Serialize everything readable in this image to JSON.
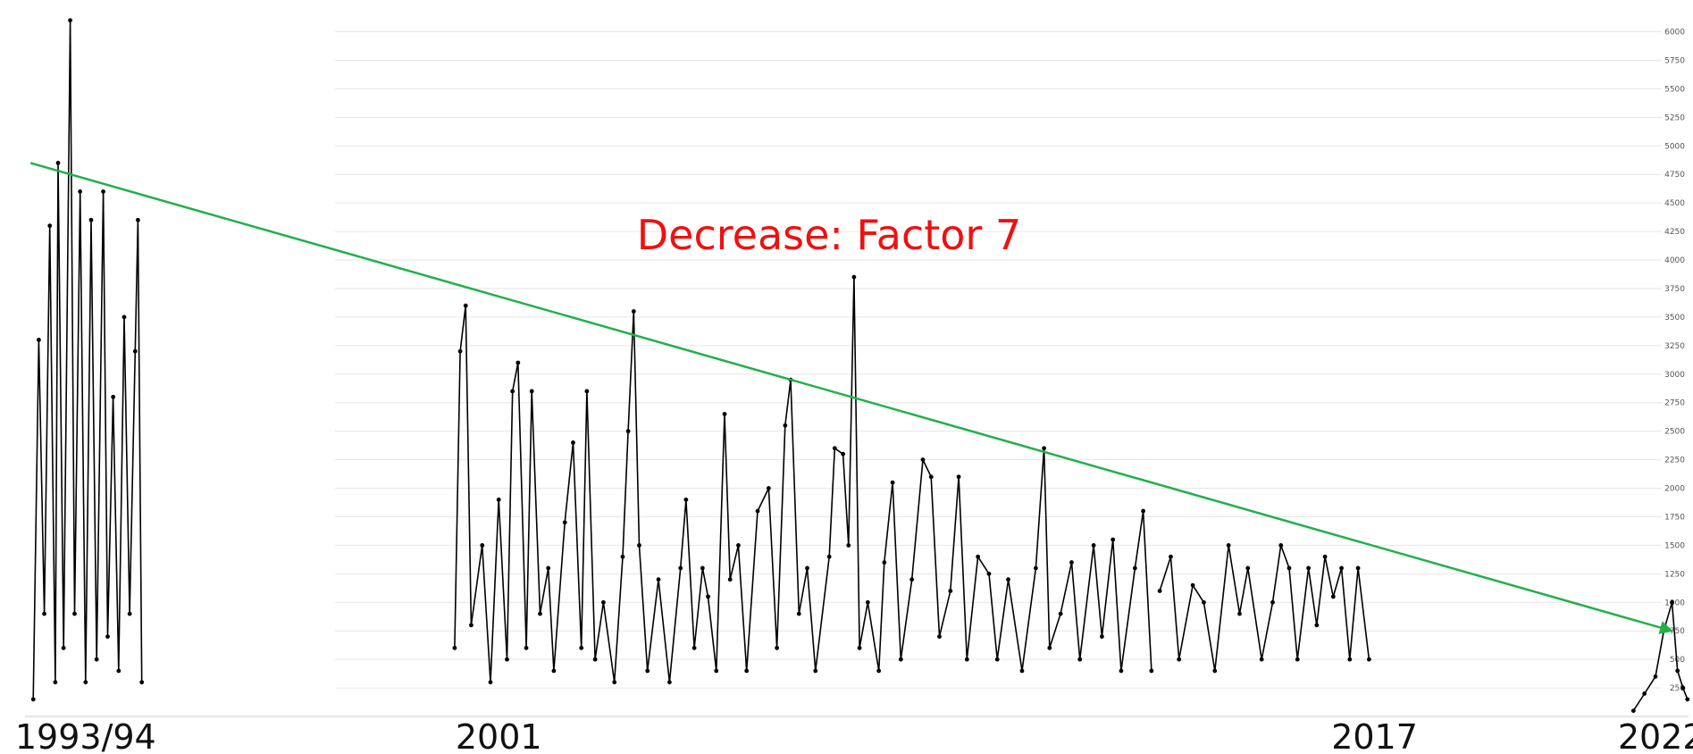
{
  "chart_data": {
    "type": "line",
    "title": "",
    "xlabel": "",
    "ylabel": "",
    "ylim": [
      0,
      6200
    ],
    "xlim": [
      1993.0,
      2023.2
    ],
    "y_ticks": [
      250,
      500,
      750,
      1000,
      1250,
      1500,
      1750,
      2000,
      2250,
      2500,
      2750,
      3000,
      3250,
      3500,
      3750,
      4000,
      4250,
      4500,
      4750,
      5000,
      5250,
      5500,
      5750,
      6000
    ],
    "grid": true,
    "legend": "none",
    "x_tick_labels": [
      {
        "label": "1993/94",
        "x": 1994.1
      },
      {
        "label": "2001",
        "x": 2001.6
      },
      {
        "label": "2017",
        "x": 2017.5
      },
      {
        "label": "2022",
        "x": 2022.7
      }
    ],
    "series": [
      {
        "segments": [
          [
            1993.15,
            150
          ],
          [
            1993.25,
            3300
          ],
          [
            1993.35,
            900
          ],
          [
            1993.45,
            4300
          ],
          [
            1993.55,
            300
          ],
          [
            1993.6,
            4850
          ],
          [
            1993.7,
            600
          ],
          [
            1993.82,
            6100
          ],
          [
            1993.9,
            900
          ],
          [
            1994.0,
            4600
          ],
          [
            1994.1,
            300
          ],
          [
            1994.2,
            4350
          ],
          [
            1994.3,
            500
          ],
          [
            1994.42,
            4600
          ],
          [
            1994.5,
            700
          ],
          [
            1994.6,
            2800
          ],
          [
            1994.7,
            400
          ],
          [
            1994.8,
            3500
          ],
          [
            1994.9,
            900
          ],
          [
            1995.0,
            3200
          ],
          [
            1995.05,
            4350
          ],
          [
            1995.12,
            300
          ],
          null,
          [
            2000.8,
            600
          ],
          [
            2000.9,
            3200
          ],
          [
            2001.0,
            3600
          ],
          [
            2001.1,
            800
          ],
          [
            2001.3,
            1500
          ],
          [
            2001.45,
            300
          ],
          [
            2001.6,
            1900
          ],
          [
            2001.75,
            500
          ],
          [
            2001.85,
            2850
          ],
          [
            2001.95,
            3100
          ],
          [
            2002.1,
            600
          ],
          [
            2002.2,
            2850
          ],
          [
            2002.35,
            900
          ],
          [
            2002.5,
            1300
          ],
          [
            2002.6,
            400
          ],
          [
            2002.8,
            1700
          ],
          [
            2002.95,
            2400
          ],
          [
            2003.1,
            600
          ],
          [
            2003.2,
            2850
          ],
          [
            2003.35,
            500
          ],
          [
            2003.5,
            1000
          ],
          [
            2003.7,
            300
          ],
          [
            2003.85,
            1400
          ],
          [
            2003.95,
            2500
          ],
          [
            2004.05,
            3550
          ],
          [
            2004.15,
            1500
          ],
          [
            2004.3,
            400
          ],
          [
            2004.5,
            1200
          ],
          [
            2004.7,
            300
          ],
          [
            2004.9,
            1300
          ],
          [
            2005.0,
            1900
          ],
          [
            2005.15,
            600
          ],
          [
            2005.3,
            1300
          ],
          [
            2005.4,
            1050
          ],
          [
            2005.55,
            400
          ],
          [
            2005.7,
            2650
          ],
          [
            2005.8,
            1200
          ],
          [
            2005.95,
            1500
          ],
          [
            2006.1,
            400
          ],
          [
            2006.3,
            1800
          ],
          [
            2006.5,
            2000
          ],
          [
            2006.65,
            600
          ],
          [
            2006.8,
            2550
          ],
          [
            2006.9,
            2950
          ],
          [
            2007.05,
            900
          ],
          [
            2007.2,
            1300
          ],
          [
            2007.35,
            400
          ],
          [
            2007.6,
            1400
          ],
          [
            2007.7,
            2350
          ],
          [
            2007.85,
            2300
          ],
          [
            2007.95,
            1500
          ],
          [
            2008.05,
            3850
          ],
          [
            2008.15,
            600
          ],
          [
            2008.3,
            1000
          ],
          [
            2008.5,
            400
          ],
          [
            2008.6,
            1350
          ],
          [
            2008.75,
            2050
          ],
          [
            2008.9,
            500
          ],
          [
            2009.1,
            1200
          ],
          [
            2009.3,
            2250
          ],
          [
            2009.45,
            2100
          ],
          [
            2009.6,
            700
          ],
          [
            2009.8,
            1100
          ],
          [
            2009.95,
            2100
          ],
          [
            2010.1,
            500
          ],
          [
            2010.3,
            1400
          ],
          [
            2010.5,
            1250
          ],
          [
            2010.65,
            500
          ],
          [
            2010.85,
            1200
          ],
          [
            2011.1,
            400
          ],
          [
            2011.35,
            1300
          ],
          [
            2011.5,
            2350
          ],
          [
            2011.6,
            600
          ],
          [
            2011.8,
            900
          ],
          [
            2012.0,
            1350
          ],
          [
            2012.15,
            500
          ],
          [
            2012.4,
            1500
          ],
          [
            2012.55,
            700
          ],
          [
            2012.75,
            1550
          ],
          [
            2012.9,
            400
          ],
          [
            2013.15,
            1300
          ],
          [
            2013.3,
            1800
          ],
          [
            2013.45,
            400
          ],
          null,
          [
            2013.6,
            1100
          ],
          [
            2013.8,
            1400
          ],
          [
            2013.95,
            500
          ],
          [
            2014.2,
            1150
          ],
          [
            2014.4,
            1000
          ],
          [
            2014.6,
            400
          ],
          [
            2014.85,
            1500
          ],
          [
            2015.05,
            900
          ],
          [
            2015.2,
            1300
          ],
          [
            2015.45,
            500
          ],
          [
            2015.65,
            1000
          ],
          [
            2015.8,
            1500
          ],
          [
            2015.95,
            1300
          ],
          [
            2016.1,
            500
          ],
          [
            2016.3,
            1300
          ],
          [
            2016.45,
            800
          ],
          [
            2016.6,
            1400
          ],
          [
            2016.75,
            1050
          ],
          [
            2016.9,
            1300
          ],
          [
            2017.05,
            500
          ],
          [
            2017.2,
            1300
          ],
          [
            2017.4,
            500
          ],
          null,
          [
            2022.2,
            50
          ],
          [
            2022.4,
            200
          ],
          [
            2022.6,
            350
          ],
          [
            2022.75,
            750
          ],
          [
            2022.9,
            1000
          ],
          [
            2023.0,
            400
          ],
          [
            2023.1,
            250
          ],
          [
            2023.18,
            150
          ]
        ]
      }
    ],
    "trend_line": {
      "start": [
        1993.1,
        4850
      ],
      "end": [
        2022.9,
        750
      ]
    },
    "annotation": {
      "text": "Decrease: Factor 7",
      "color": "#ee1111"
    },
    "colors": {
      "series": "#000000",
      "trend": "#22b04a",
      "grid": "#e6e6e6"
    }
  }
}
